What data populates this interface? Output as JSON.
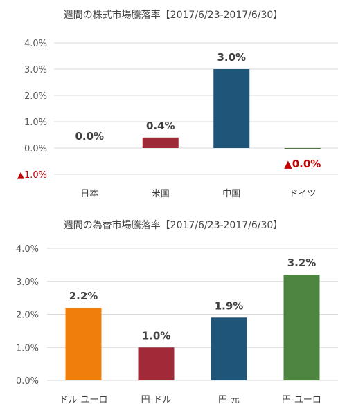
{
  "chart_data": [
    {
      "type": "bar",
      "title": "週間の株式市場騰落率【2017/6/23-2017/6/30】",
      "categories": [
        "日本",
        "米国",
        "中国",
        "ドイツ"
      ],
      "values": [
        0.0,
        0.4,
        3.0,
        -0.02
      ],
      "data_labels": [
        "0.0%",
        "0.4%",
        "3.0%",
        "▲0.0%"
      ],
      "colors": [
        "#9e2a35",
        "#9e2a35",
        "#1f5579",
        "#4a7a3a"
      ],
      "ylim": [
        -1.0,
        4.0
      ],
      "yticks": [
        4.0,
        3.0,
        2.0,
        1.0,
        0.0,
        -1.0
      ],
      "ytick_labels": [
        "4.0%",
        "3.0%",
        "2.0%",
        "1.0%",
        "0.0%",
        "▲1.0%"
      ],
      "grid": true,
      "legend": "none",
      "xlabel": "",
      "ylabel": ""
    },
    {
      "type": "bar",
      "title": "週間の為替市場騰落率【2017/6/23-2017/6/30】",
      "categories": [
        "ドル-ユーロ",
        "円-ドル",
        "円-元",
        "円-ユーロ"
      ],
      "values": [
        2.2,
        1.0,
        1.9,
        3.2
      ],
      "data_labels": [
        "2.2%",
        "1.0%",
        "1.9%",
        "3.2%"
      ],
      "colors": [
        "#ef7f0a",
        "#a02a38",
        "#1f5579",
        "#4e8540"
      ],
      "ylim": [
        0.0,
        4.0
      ],
      "yticks": [
        4.0,
        3.0,
        2.0,
        1.0,
        0.0
      ],
      "ytick_labels": [
        "4.0%",
        "3.0%",
        "2.0%",
        "1.0%",
        "0.0%"
      ],
      "grid": true,
      "legend": "none",
      "xlabel": "",
      "ylabel": ""
    }
  ]
}
